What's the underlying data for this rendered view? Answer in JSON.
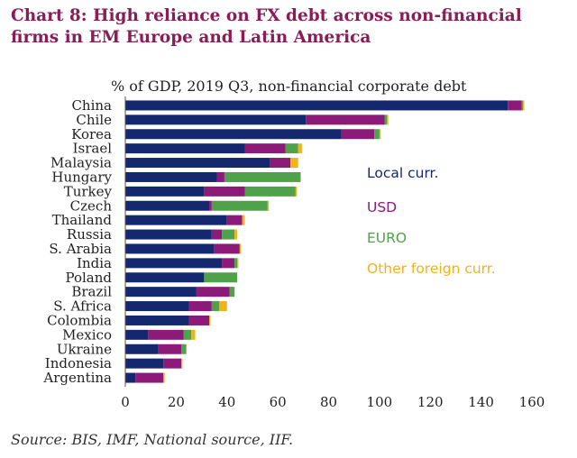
{
  "title": "Chart 8: High reliance on FX debt across non-financial firms in EM Europe and Latin America",
  "source": "Source: BIS, IMF, National source, IIF.",
  "colors": {
    "local": "#13286e",
    "usd": "#8b1a79",
    "euro": "#4fa14a",
    "other": "#f0b31c",
    "axis": "#555555"
  },
  "chart_data": {
    "type": "bar",
    "orientation": "horizontal",
    "stacked": true,
    "subtitle": "% of GDP, 2019 Q3, non-financial corporate debt",
    "categories": [
      "China",
      "Chile",
      "Korea",
      "Israel",
      "Malaysia",
      "Hungary",
      "Turkey",
      "Czech",
      "Thailand",
      "Russia",
      "S. Arabia",
      "India",
      "Poland",
      "Brazil",
      "S. Africa",
      "Colombia",
      "Mexico",
      "Ukraine",
      "Indonesia",
      "Argentina"
    ],
    "series": [
      {
        "name": "Local curr.",
        "color": "#13286e",
        "values": [
          150.5,
          71,
          85,
          47,
          57,
          36,
          31,
          33,
          40,
          34,
          35,
          38,
          31,
          28,
          25,
          25,
          9,
          13,
          15,
          4
        ]
      },
      {
        "name": "USD",
        "color": "#8b1a79",
        "values": [
          5.5,
          31,
          13,
          16,
          8,
          3,
          16,
          1,
          6,
          4,
          10,
          5,
          0,
          13,
          9,
          8,
          14,
          9,
          7,
          11
        ]
      },
      {
        "name": "EURO",
        "color": "#4fa14a",
        "values": [
          0.5,
          1,
          2,
          5,
          0,
          30,
          20,
          22,
          0,
          5,
          0,
          1,
          13,
          2,
          3,
          0,
          3,
          2,
          0,
          0
        ]
      },
      {
        "name": "Other foreign curr.",
        "color": "#f0b31c",
        "values": [
          0.5,
          0.5,
          0.5,
          1.5,
          3,
          0,
          0.5,
          0.5,
          1,
          1,
          0.5,
          0.5,
          0,
          0,
          3,
          0.5,
          1.5,
          0,
          0.5,
          0.5
        ]
      }
    ],
    "xlim": [
      0,
      160
    ],
    "xticks": [
      0,
      20,
      40,
      60,
      80,
      100,
      120,
      140,
      160
    ],
    "legend": "inside-right",
    "grid": false
  }
}
